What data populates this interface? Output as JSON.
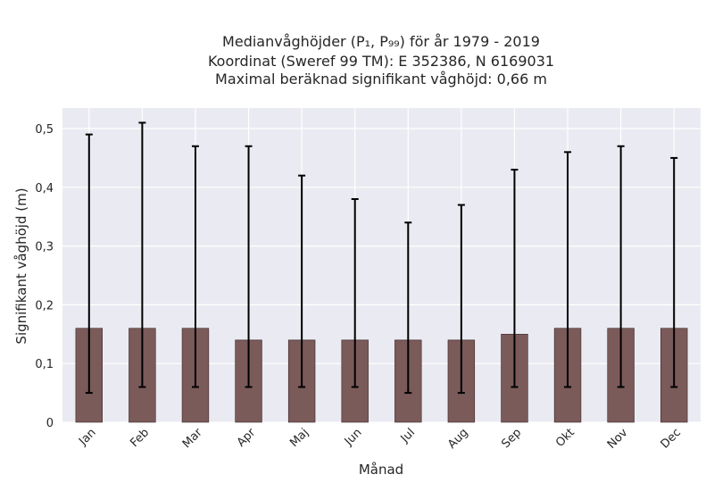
{
  "chart_data": {
    "type": "bar",
    "title_lines": [
      "Medianvåghöjder (P₁, P₉₉) för år 1979 - 2019",
      "Koordinat (Sweref 99 TM): E 352386, N 6169031",
      "Maximal beräknad signifikant våghöjd: 0,66 m"
    ],
    "xlabel": "Månad",
    "ylabel": "Signifikant våghöjd (m)",
    "categories": [
      "Jan",
      "Feb",
      "Mar",
      "Apr",
      "Maj",
      "Jun",
      "Jul",
      "Aug",
      "Sep",
      "Okt",
      "Nov",
      "Dec"
    ],
    "series": [
      {
        "values": [
          0.16,
          0.16,
          0.16,
          0.14,
          0.14,
          0.14,
          0.14,
          0.14,
          0.15,
          0.16,
          0.16,
          0.16
        ],
        "p1": [
          0.05,
          0.06,
          0.06,
          0.06,
          0.06,
          0.06,
          0.05,
          0.05,
          0.06,
          0.06,
          0.06,
          0.06
        ],
        "p99": [
          0.49,
          0.51,
          0.47,
          0.47,
          0.42,
          0.38,
          0.34,
          0.37,
          0.43,
          0.46,
          0.47,
          0.45
        ]
      }
    ],
    "ylim": [
      0,
      0.535
    ],
    "yticks": [
      0,
      0.1,
      0.2,
      0.3,
      0.4,
      0.5
    ],
    "ytick_labels": [
      "0",
      "0,1",
      "0,2",
      "0,3",
      "0,4",
      "0,5"
    ],
    "grid": true,
    "legend": "none",
    "colors": {
      "bar": "#7b5a5a",
      "bar_edge": "#3a2a2a",
      "errorbar": "#000000",
      "plot_background": "#eaeaf2",
      "grid": "#ffffff"
    }
  }
}
